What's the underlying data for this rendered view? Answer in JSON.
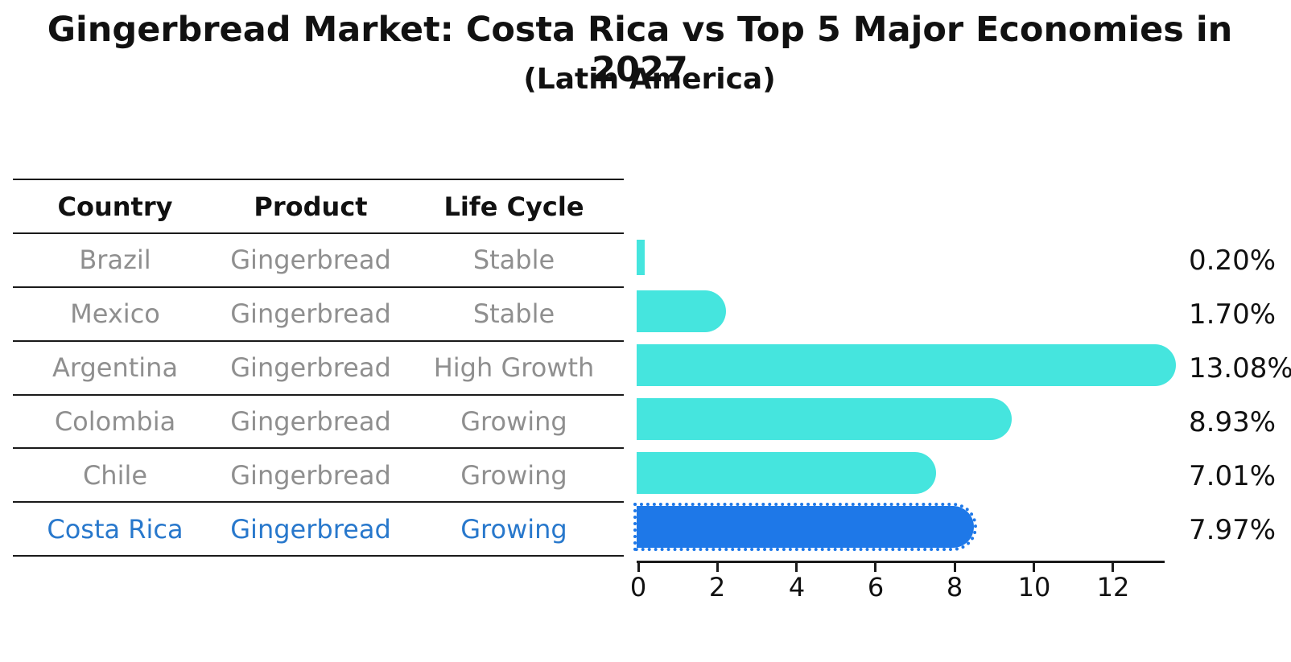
{
  "title": "Gingerbread Market: Costa Rica vs Top 5 Major Economies in 2027",
  "subtitle": "(Latin America)",
  "table": {
    "headers": [
      "Country",
      "Product",
      "Life Cycle"
    ],
    "rows": [
      {
        "country": "Brazil",
        "product": "Gingerbread",
        "life_cycle": "Stable",
        "highlight": false
      },
      {
        "country": "Mexico",
        "product": "Gingerbread",
        "life_cycle": "Stable",
        "highlight": false
      },
      {
        "country": "Argentina",
        "product": "Gingerbread",
        "life_cycle": "High Growth",
        "highlight": false
      },
      {
        "country": "Colombia",
        "product": "Gingerbread",
        "life_cycle": "Growing",
        "highlight": false
      },
      {
        "country": "Chile",
        "product": "Gingerbread",
        "life_cycle": "Growing",
        "highlight": true
      }
    ],
    "highlight_row": {
      "country": "Costa Rica",
      "product": "Gingerbread",
      "life_cycle": "Growing"
    }
  },
  "chart_data": {
    "type": "bar",
    "orientation": "horizontal",
    "categories": [
      "Brazil",
      "Mexico",
      "Argentina",
      "Colombia",
      "Chile",
      "Costa Rica"
    ],
    "values": [
      0.2,
      1.7,
      13.08,
      8.93,
      7.01,
      7.97
    ],
    "value_labels": [
      "0.20%",
      "1.70%",
      "13.08%",
      "8.93%",
      "7.01%",
      "7.97%"
    ],
    "x_ticks": [
      0,
      2,
      4,
      6,
      8,
      10,
      12
    ],
    "xlim": [
      0,
      13.3
    ],
    "grid": false,
    "legend": false,
    "bar_color": "#45E5DE",
    "highlight_index": 5,
    "highlight_bar_color": "#1E78E8",
    "highlight_text_color": "#2878CC",
    "text_color_muted": "#8F8F8F"
  }
}
